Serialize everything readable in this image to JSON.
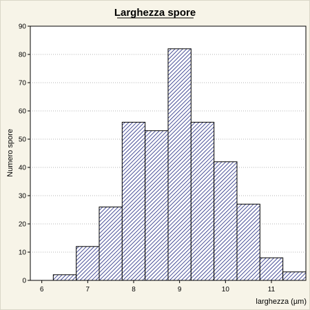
{
  "chart_data": {
    "type": "bar",
    "title": "Larghezza spore",
    "xlabel": "larghezza (µm)",
    "ylabel": "Numero spore",
    "bin_edges": [
      5.75,
      6.25,
      6.75,
      7.25,
      7.75,
      8.25,
      8.75,
      9.25,
      9.75,
      10.25,
      10.75,
      11.25,
      11.75
    ],
    "categories": [
      "5.75–6.25",
      "6.25–6.75",
      "6.75–7.25",
      "7.25–7.75",
      "7.75–8.25",
      "8.25–8.75",
      "8.75–9.25",
      "9.25–9.75",
      "9.75–10.25",
      "10.25–10.75",
      "10.75–11.25",
      "11.25–11.75"
    ],
    "values": [
      0,
      2,
      12,
      26,
      56,
      53,
      82,
      56,
      42,
      27,
      8,
      3
    ],
    "xlim": [
      5.75,
      11.75
    ],
    "ylim": [
      0,
      90
    ],
    "x_ticks": [
      6,
      7,
      8,
      9,
      10,
      11
    ],
    "y_ticks": [
      0,
      10,
      20,
      30,
      40,
      50,
      60,
      70,
      80,
      90
    ],
    "grid": "horizontal-dotted",
    "bar_fill": "diagonal-hatch",
    "colors": {
      "bar": "#1a237e",
      "background": "#f7f4e8",
      "plot": "#ffffff"
    }
  }
}
